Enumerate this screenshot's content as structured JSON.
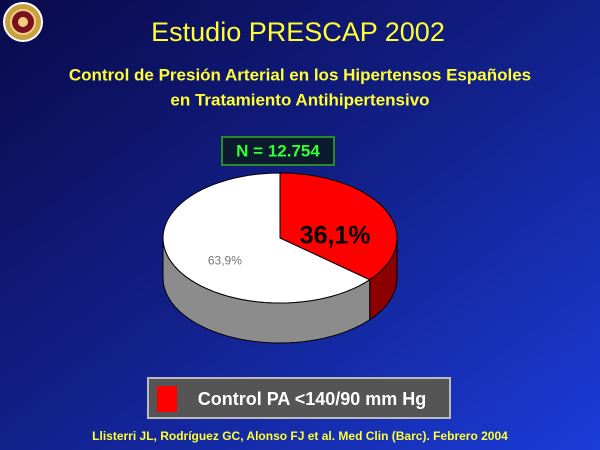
{
  "chart_data": {
    "type": "pie",
    "title": "Estudio PRESCAP 2002",
    "subtitle": [
      "Control de Presión Arterial en los Hipertensos Españoles",
      "en Tratamiento Antihipertensivo"
    ],
    "annotation": "N = 12.754",
    "categories": [
      "Control PA <140/90 mm Hg",
      null
    ],
    "values": [
      36.1,
      63.9
    ],
    "value_labels": [
      "36,1%",
      "63,9%"
    ],
    "colors": [
      "#ff0000",
      "#ffffff"
    ],
    "source": "Llisterri JL, Rodríguez GC, Alonso FJ  et al. Med Clin (Barc). Febrero 2004"
  }
}
